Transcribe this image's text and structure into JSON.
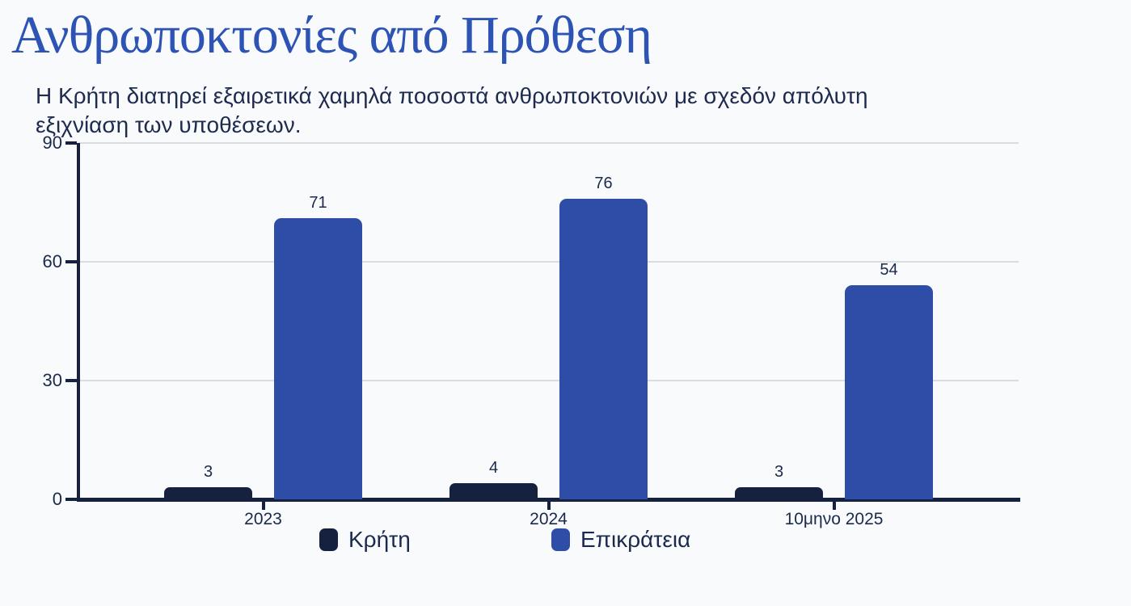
{
  "header": {
    "title": "Ανθρωποκτονίες από Πρόθεση",
    "subtitle": "Η Κρήτη διατηρεί εξαιρετικά χαμηλά ποσοστά ανθρωποκτονιών με σχεδόν απόλυτη εξιχνίαση των υποθέσεων.",
    "subtitle_lines": [
      "Η Κρήτη διατηρεί εξαιρετικά χαμηλά ποσοστά ανθρωποκτονιών με σχεδόν απόλυτη",
      "εξιχνίαση των υποθέσεων."
    ]
  },
  "colors": {
    "background": "#f8fafc",
    "title": "#2d54b5",
    "text": "#1b2a4c",
    "axis": "#16213f",
    "gridline": "#d9dde3",
    "crete_bar": "#16213f",
    "country_bar": "#2e4da6"
  },
  "chart_data": {
    "type": "bar",
    "title": "Ανθρωποκτονίες από Πρόθεση",
    "categories": [
      "2023",
      "2024",
      "10μηνο 2025"
    ],
    "series": [
      {
        "key": "kriti",
        "name": "Κρήτη",
        "color": "#16213f",
        "values": [
          3,
          4,
          3
        ]
      },
      {
        "key": "epikrateia",
        "name": "Επικράτεια",
        "color": "#2e4da6",
        "values": [
          71,
          76,
          54
        ]
      }
    ],
    "value_labels": [
      [
        "3",
        "4",
        "3"
      ],
      [
        "71",
        "76",
        "54"
      ]
    ],
    "ylim": [
      0,
      90
    ],
    "yticks": [
      "0",
      "30",
      "60",
      "90"
    ],
    "grid": true,
    "legend_position": "bottom",
    "xlabel": "",
    "ylabel": ""
  }
}
